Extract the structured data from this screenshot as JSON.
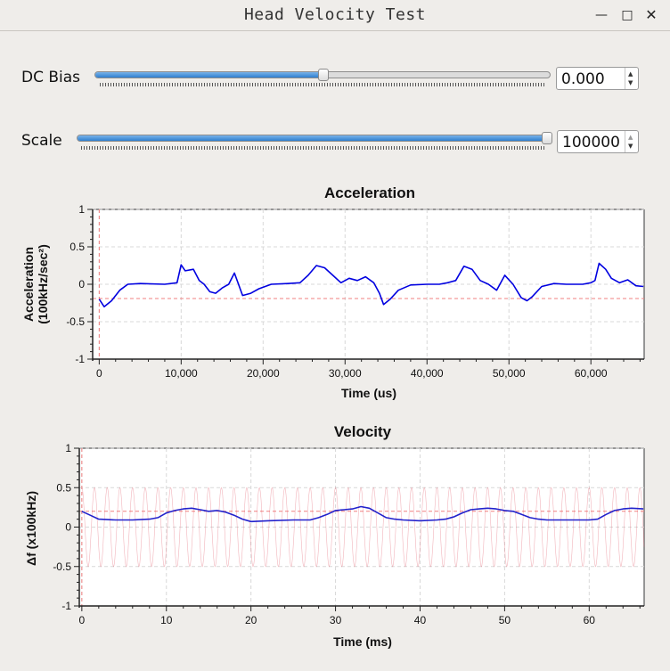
{
  "window": {
    "title": "Head Velocity Test",
    "minimize_icon": "minimize-icon",
    "maximize_icon": "maximize-icon",
    "close_icon": "close-icon"
  },
  "controls": {
    "dc_bias": {
      "label": "DC Bias",
      "value": "0.000",
      "fraction": 0.5
    },
    "scale": {
      "label": "Scale",
      "value": "100000",
      "fraction": 1.0
    }
  },
  "chart_data": [
    {
      "type": "line",
      "title": "Acceleration",
      "xlabel": "Time (us)",
      "ylabel": "Acceleration (100kHz/sec²)",
      "ylabel_lines": [
        "Acceleration",
        "(100kHz/sec²)"
      ],
      "xlim": [
        -800,
        66500
      ],
      "ylim": [
        -1,
        1
      ],
      "x_ticks": [
        0,
        10000,
        20000,
        30000,
        40000,
        50000,
        60000
      ],
      "x_tick_labels": [
        "0",
        "10,000",
        "20,000",
        "30,000",
        "40,000",
        "50,000",
        "60,000"
      ],
      "y_ticks": [
        1,
        0.5,
        0,
        -0.5,
        -1
      ],
      "y_tick_labels": [
        "1",
        "0.5",
        "0",
        "-0.5",
        "-1"
      ],
      "grid": true,
      "reference_lines": [
        {
          "axis": "y",
          "value": -0.19,
          "color": "#f08080"
        },
        {
          "axis": "x",
          "value": 0,
          "color": "#f08080"
        }
      ],
      "series": [
        {
          "color": "#0000e0",
          "x": [
            0,
            600,
            1500,
            2500,
            3500,
            5000,
            8000,
            9500,
            10000,
            10500,
            11500,
            12200,
            12800,
            13500,
            14200,
            15000,
            15800,
            16500,
            17000,
            17500,
            18500,
            19500,
            21000,
            23000,
            24500,
            25500,
            26500,
            27500,
            28500,
            29500,
            30500,
            31500,
            32500,
            33500,
            34200,
            34700,
            35500,
            36500,
            38000,
            40000,
            41500,
            42500,
            43500,
            44500,
            45500,
            46500,
            47500,
            48500,
            49500,
            50500,
            51500,
            52200,
            52800,
            54000,
            55500,
            57000,
            59000,
            60000,
            60500,
            61000,
            61800,
            62500,
            63500,
            64500,
            65500,
            66400
          ],
          "y": [
            -0.2,
            -0.3,
            -0.22,
            -0.08,
            0.0,
            0.01,
            0.0,
            0.02,
            0.26,
            0.18,
            0.2,
            0.05,
            0.0,
            -0.1,
            -0.12,
            -0.05,
            0.0,
            0.15,
            0.0,
            -0.15,
            -0.12,
            -0.06,
            0.0,
            0.01,
            0.02,
            0.12,
            0.25,
            0.22,
            0.12,
            0.02,
            0.08,
            0.05,
            0.1,
            0.02,
            -0.12,
            -0.27,
            -0.2,
            -0.08,
            -0.01,
            0.0,
            0.0,
            0.02,
            0.05,
            0.24,
            0.2,
            0.05,
            0.0,
            -0.08,
            0.12,
            0.0,
            -0.18,
            -0.22,
            -0.17,
            -0.03,
            0.01,
            0.0,
            0.0,
            0.02,
            0.05,
            0.28,
            0.2,
            0.08,
            0.02,
            0.06,
            -0.02,
            -0.03
          ]
        }
      ]
    },
    {
      "type": "line",
      "title": "Velocity",
      "xlabel": "Time (ms)",
      "ylabel": "Δf (x100kHz)",
      "xlim": [
        -0.3,
        66.5
      ],
      "ylim": [
        -1,
        1
      ],
      "x_ticks": [
        0,
        10,
        20,
        30,
        40,
        50,
        60
      ],
      "x_tick_labels": [
        "0",
        "10",
        "20",
        "30",
        "40",
        "50",
        "60"
      ],
      "y_ticks": [
        1,
        0.5,
        0,
        -0.5,
        -1
      ],
      "y_tick_labels": [
        "1",
        "0.5",
        "0",
        "-0.5",
        "-1"
      ],
      "grid": true,
      "reference_lines": [
        {
          "axis": "y",
          "value": 0.2,
          "color": "#f08080"
        },
        {
          "axis": "x",
          "value": 0,
          "color": "#f08080"
        }
      ],
      "series": [
        {
          "color": "#e35a6b",
          "kind": "sine",
          "amplitude": 0.5,
          "period": 1.5,
          "x_range": [
            0,
            66.5
          ]
        },
        {
          "color": "#2222cc",
          "x": [
            0,
            1,
            2,
            4,
            6,
            8,
            9,
            10,
            11,
            12,
            13,
            14,
            15,
            16,
            17,
            18,
            19,
            20,
            22,
            25,
            27,
            28,
            29,
            30,
            31,
            32,
            33,
            34,
            35,
            36,
            37,
            38,
            40,
            42,
            43,
            44,
            45,
            46,
            47,
            48,
            49,
            50,
            51,
            52,
            53,
            54,
            55,
            58,
            60,
            61,
            62,
            63,
            64,
            65,
            66.4
          ],
          "y": [
            0.2,
            0.15,
            0.1,
            0.09,
            0.09,
            0.1,
            0.12,
            0.18,
            0.21,
            0.23,
            0.24,
            0.22,
            0.2,
            0.21,
            0.19,
            0.15,
            0.1,
            0.07,
            0.08,
            0.09,
            0.09,
            0.12,
            0.16,
            0.21,
            0.22,
            0.23,
            0.26,
            0.24,
            0.18,
            0.12,
            0.1,
            0.09,
            0.08,
            0.09,
            0.1,
            0.13,
            0.18,
            0.22,
            0.23,
            0.24,
            0.23,
            0.21,
            0.2,
            0.16,
            0.12,
            0.1,
            0.09,
            0.09,
            0.09,
            0.1,
            0.16,
            0.21,
            0.23,
            0.24,
            0.23
          ]
        }
      ]
    }
  ]
}
